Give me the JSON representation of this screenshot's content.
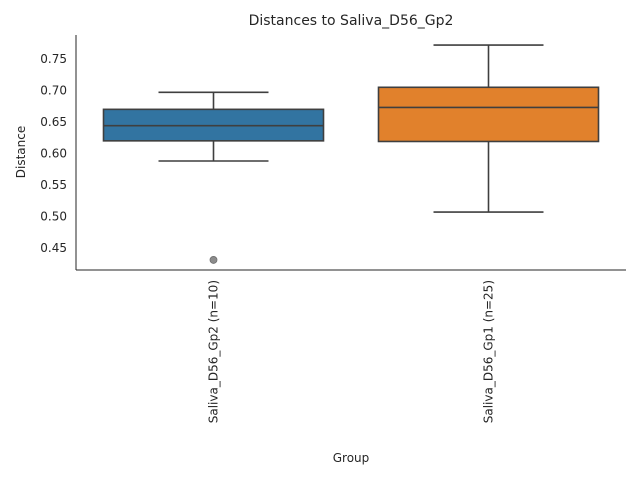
{
  "chart_data": {
    "type": "box",
    "title": "Distances to Saliva_D56_Gp2",
    "xlabel": "Group",
    "ylabel": "Distance",
    "categories": [
      "Saliva_D56_Gp2 (n=10)",
      "Saliva_D56_Gp1 (n=25)"
    ],
    "yticks": [
      0.45,
      0.5,
      0.55,
      0.6,
      0.65,
      0.7,
      0.75
    ],
    "ytick_labels": [
      "0.45",
      "0.50",
      "0.55",
      "0.60",
      "0.65",
      "0.70",
      "0.75"
    ],
    "ylim": [
      0.415,
      0.788
    ],
    "grid": false,
    "boxes": [
      {
        "category": "Saliva_D56_Gp2 (n=10)",
        "whisker_low": 0.588,
        "q1": 0.62,
        "median": 0.644,
        "q3": 0.67,
        "whisker_high": 0.697,
        "outliers": [
          0.431
        ],
        "color": "#3274a1"
      },
      {
        "category": "Saliva_D56_Gp1 (n=25)",
        "whisker_low": 0.507,
        "q1": 0.619,
        "median": 0.673,
        "q3": 0.705,
        "whisker_high": 0.772,
        "outliers": [],
        "color": "#e1812c"
      }
    ]
  }
}
